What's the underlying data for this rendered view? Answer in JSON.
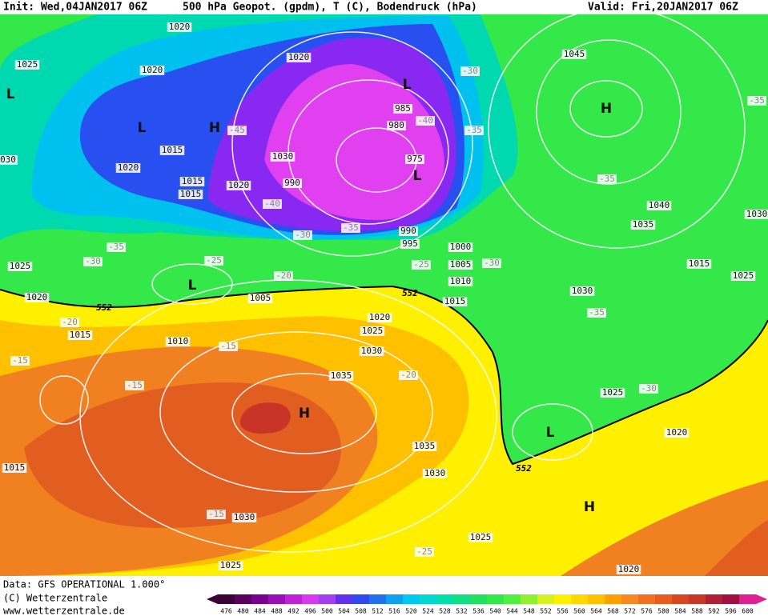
{
  "header": {
    "init": "Init: Wed,04JAN2017 06Z",
    "product": "500 hPa Geopot. (gpdm), T (C), Bodendruck (hPa)",
    "valid": "Valid: Fri,20JAN2017 06Z"
  },
  "map": {
    "isobar_labels": [
      1020,
      1025,
      1020,
      1020,
      1015,
      1020,
      1015,
      1015,
      1020,
      1030,
      990,
      985,
      980,
      975,
      990,
      995,
      1000,
      1005,
      1010,
      1015,
      1025,
      1020,
      1005,
      1015,
      1010,
      1020,
      1025,
      1030,
      1035,
      1035,
      1030,
      1030,
      1025,
      1025,
      1020,
      1020,
      1025,
      1030,
      1015,
      1025,
      1035,
      1040,
      1045,
      1015,
      1030,
      "030"
    ],
    "temperature_labels": [
      -45,
      -40,
      -35,
      -30,
      -35,
      -35,
      -40,
      -35,
      -30,
      -35,
      -30,
      -25,
      -20,
      -25,
      -30,
      -20,
      -15,
      -15,
      -15,
      -20,
      -35,
      -30,
      -15,
      -25
    ],
    "pressure_centers": [
      "L",
      "L",
      "H",
      "L",
      "L",
      "H",
      "L",
      "H",
      "L",
      "H"
    ],
    "contour_552_labels": [
      552,
      552,
      552
    ]
  },
  "footer": {
    "data_source": "Data: GFS OPERATIONAL 1.000°",
    "copyright": "(C) Wetterzentrale",
    "website": "www.wetterzentrale.de"
  },
  "legend": {
    "labels": [
      476,
      480,
      484,
      488,
      492,
      496,
      500,
      504,
      508,
      512,
      516,
      520,
      524,
      528,
      532,
      536,
      540,
      544,
      548,
      552,
      556,
      560,
      564,
      568,
      572,
      576,
      580,
      584,
      588,
      592,
      596,
      600
    ],
    "colors": [
      "#3a0038",
      "#5a0060",
      "#7a0090",
      "#9a10b8",
      "#c020d8",
      "#d838f0",
      "#a040f0",
      "#6030f0",
      "#3048f0",
      "#2070f0",
      "#10a0f0",
      "#00c8f0",
      "#00d8d0",
      "#00e0a8",
      "#10e080",
      "#20e060",
      "#30e84a",
      "#50f040",
      "#90f030",
      "#d8f020",
      "#fff000",
      "#ffd800",
      "#ffc000",
      "#ffa000",
      "#f88820",
      "#f07020",
      "#e85c20",
      "#d84820",
      "#c83828",
      "#b02030",
      "#a01040",
      "#e02090"
    ]
  }
}
